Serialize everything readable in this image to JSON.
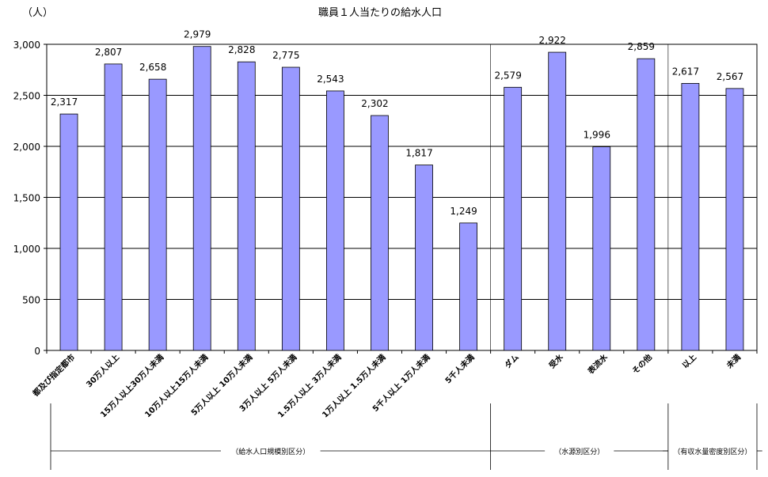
{
  "chart_data": {
    "type": "bar",
    "title": "職員１人当たりの給水人口",
    "ylabel": "（人）",
    "ylim": [
      0,
      3000
    ],
    "yticks": [
      "0",
      "500",
      "1,000",
      "1,500",
      "2,000",
      "2,500",
      "3,000"
    ],
    "ytick_values": [
      0,
      500,
      1000,
      1500,
      2000,
      2500,
      3000
    ],
    "grid": true,
    "bar_color": "#9999ff",
    "categories": [
      "都及び指定都市",
      "30万人以上",
      "15万人以上30万人未満",
      "10万人以上15万人未満",
      "5万人以上 10万人未満",
      "3万人以上 5万人未満",
      "1.5万人以上 3万人未満",
      "1万人以上 1.5万人未満",
      "5千人以上 1万人未満",
      "5千人未満",
      "ダム",
      "受水",
      "表流水",
      "その他",
      "以上",
      "未満"
    ],
    "values": [
      2317,
      2807,
      2658,
      2979,
      2828,
      2775,
      2543,
      2302,
      1817,
      1249,
      2579,
      2922,
      1996,
      2859,
      2617,
      2567
    ],
    "value_labels": [
      "2,317",
      "2,807",
      "2,658",
      "2,979",
      "2,828",
      "2,775",
      "2,543",
      "2,302",
      "1,817",
      "1,249",
      "2,579",
      "2,922",
      "1,996",
      "2,859",
      "2,617",
      "2,567"
    ],
    "groups": [
      {
        "label": "（給水人口規模別区分）",
        "start": 0,
        "end": 9
      },
      {
        "label": "（水源別区分）",
        "start": 10,
        "end": 13
      },
      {
        "label": "（有収水量密度別区分）",
        "start": 14,
        "end": 15
      }
    ]
  }
}
